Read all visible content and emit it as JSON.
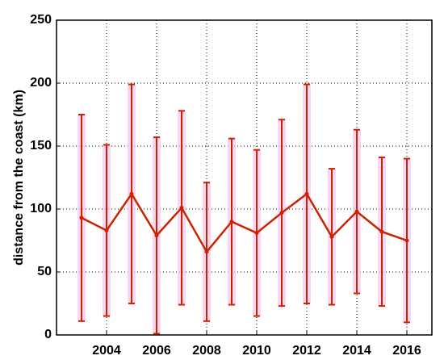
{
  "chart_data": {
    "type": "errorbar-line",
    "ylabel": "distance from the coast (km)",
    "x": [
      2003,
      2004,
      2005,
      2006,
      2007,
      2008,
      2009,
      2010,
      2011,
      2012,
      2013,
      2014,
      2015,
      2016
    ],
    "series": [
      {
        "color": "#cc2200",
        "values": [
          93,
          83,
          112,
          79,
          101,
          66,
          90,
          81,
          97,
          112,
          78,
          98,
          82,
          75
        ],
        "errors": [
          82,
          68,
          87,
          78,
          77,
          55,
          66,
          66,
          74,
          87,
          54,
          65,
          59,
          65
        ]
      }
    ],
    "band_color": "#f7c6ec",
    "xlim": [
      2002,
      2017
    ],
    "xticks": [
      2004,
      2006,
      2008,
      2010,
      2012,
      2014,
      2016
    ],
    "ylim": [
      0,
      250
    ],
    "yticks": [
      0,
      50,
      100,
      150,
      200,
      250
    ],
    "grid": true
  }
}
